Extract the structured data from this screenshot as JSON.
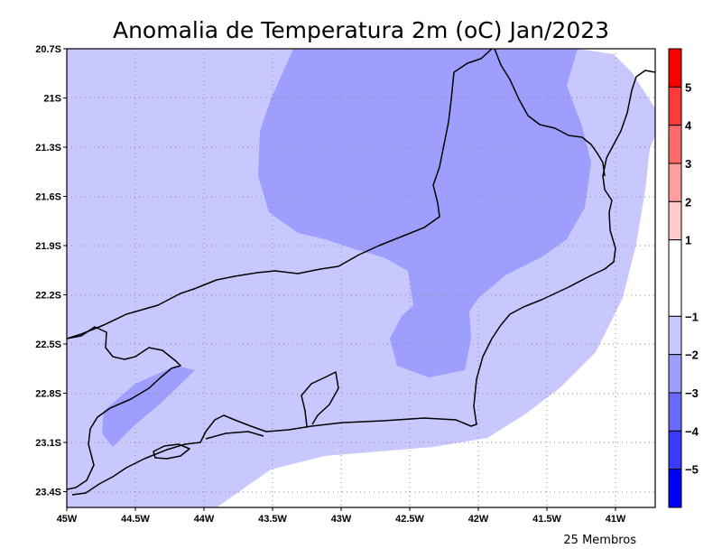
{
  "title": "Anomalia de Temperatura 2m (oC) Jan/2023",
  "footer_note": "25 Membros",
  "lat_ticks": [
    "20.7S",
    "21S",
    "21.3S",
    "21.6S",
    "21.9S",
    "22.2S",
    "22.5S",
    "22.8S",
    "23.1S",
    "23.4S"
  ],
  "lon_ticks": [
    "45W",
    "44.5W",
    "44W",
    "43.5W",
    "43W",
    "42.5W",
    "42W",
    "41.5W",
    "41W"
  ],
  "colorbar": {
    "bins": [
      {
        "from": 5,
        "to": 6,
        "color": "#ff0000"
      },
      {
        "from": 4,
        "to": 5,
        "color": "#ff3a3a"
      },
      {
        "from": 3,
        "to": 4,
        "color": "#ff6a6a"
      },
      {
        "from": 2,
        "to": 3,
        "color": "#ff9e9e"
      },
      {
        "from": 1,
        "to": 2,
        "color": "#ffcaca"
      },
      {
        "from": -1,
        "to": 1,
        "color": "#ffffff"
      },
      {
        "from": -2,
        "to": -1,
        "color": "#c8c8ff"
      },
      {
        "from": -3,
        "to": -2,
        "color": "#9e9eff"
      },
      {
        "from": -4,
        "to": -3,
        "color": "#6a6aff"
      },
      {
        "from": -5,
        "to": -4,
        "color": "#3a3aff"
      },
      {
        "from": -6,
        "to": -5,
        "color": "#0000ff"
      }
    ],
    "labels": [
      "5",
      "4",
      "3",
      "2",
      "1",
      "−1",
      "−2",
      "−3",
      "−4",
      "−5"
    ]
  },
  "colors": {
    "light_blue": "#c8c8ff",
    "mid_blue": "#9e9eff",
    "grid": "#888888",
    "coast": "#000000"
  }
}
